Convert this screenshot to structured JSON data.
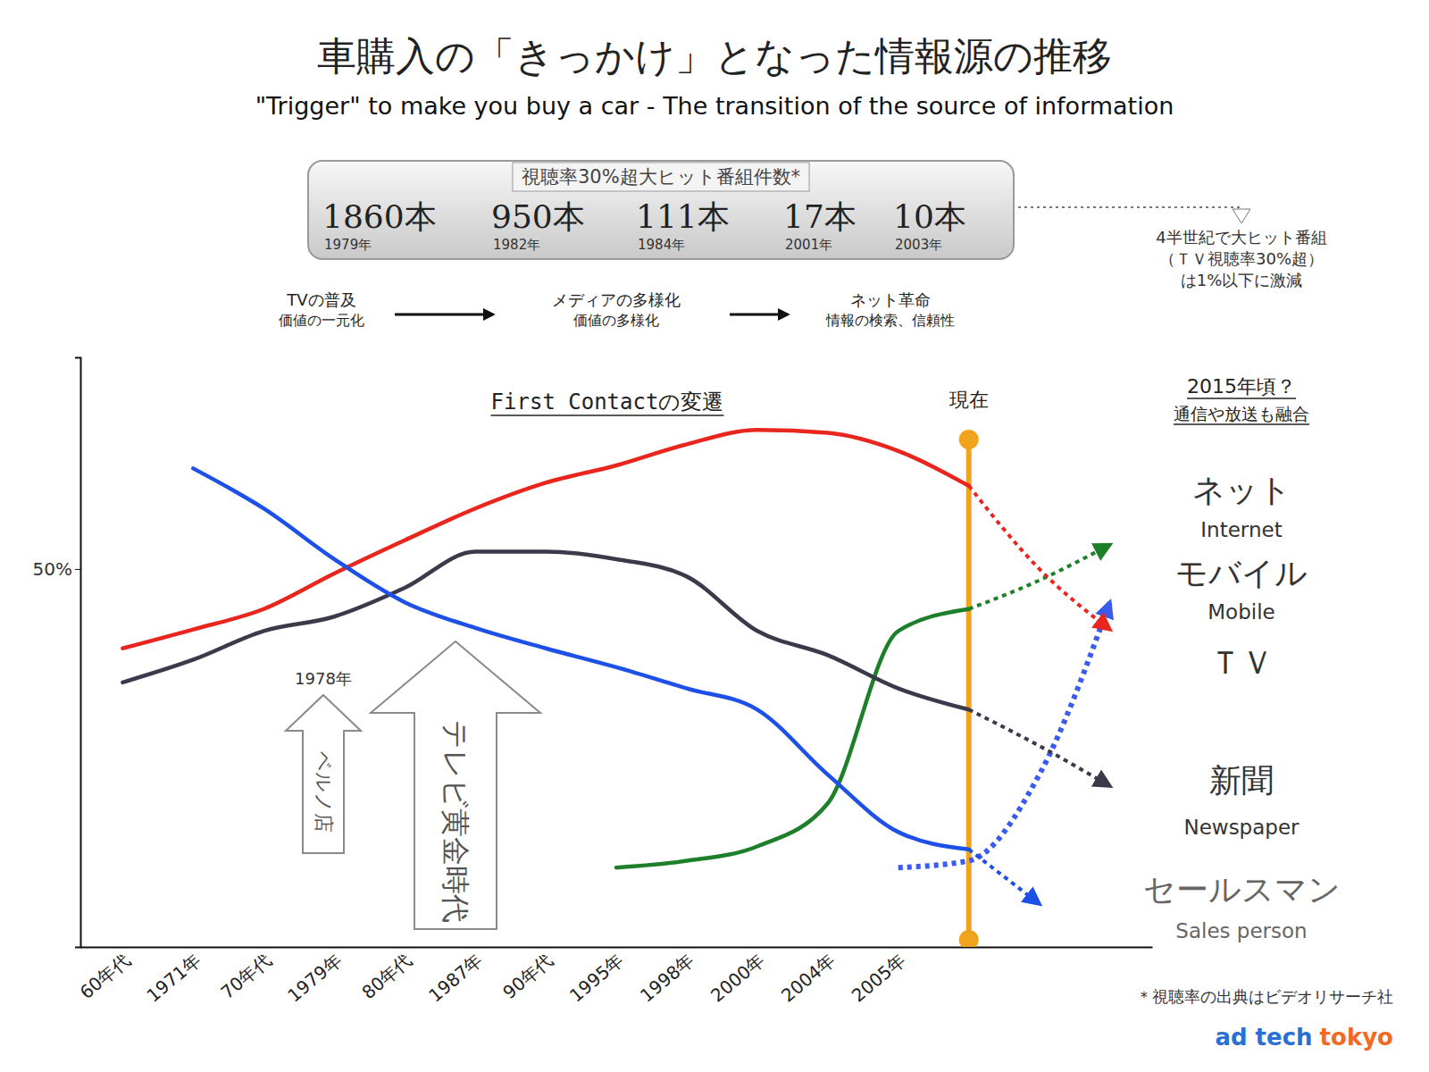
{
  "chart_data": {
    "type": "line",
    "title": "車購入の「きっかけ」となった情報源の推移",
    "subtitle": "\"Trigger\" to make you buy a car - The transition of the source of information",
    "plot_title": "First Contactの変遷",
    "categories": [
      "60年代",
      "1971年",
      "70年代",
      "1979年",
      "80年代",
      "1987年",
      "90年代",
      "1995年",
      "1998年",
      "2000年",
      "2004年",
      "2005年",
      null,
      null,
      null
    ],
    "ylim": [
      0,
      78
    ],
    "yticks": [
      {
        "value": 50,
        "label": "50%"
      }
    ],
    "grid": false,
    "series": [
      {
        "name": "ネット",
        "name_en": "Internet",
        "color": "#1e7f2a",
        "values": [
          null,
          null,
          null,
          null,
          null,
          null,
          null,
          10.5,
          11.4,
          13.3,
          19,
          41.8,
          44.7,
          null,
          null
        ],
        "forecast": [
          null,
          null,
          null,
          null,
          null,
          null,
          null,
          null,
          null,
          null,
          null,
          null,
          44.7,
          48.5,
          53.2
        ]
      },
      {
        "name": "モバイル",
        "name_en": "Mobile",
        "color": "#3b5bef",
        "values": [
          null,
          null,
          null,
          null,
          null,
          null,
          null,
          null,
          null,
          null,
          null,
          null,
          null,
          null,
          null
        ],
        "forecast": [
          null,
          null,
          null,
          null,
          null,
          null,
          null,
          null,
          null,
          null,
          null,
          10.5,
          11.4,
          22.8,
          45.6
        ]
      },
      {
        "name": "ＴＶ",
        "color": "#e8261e",
        "values": [
          39.5,
          42,
          44.7,
          49.4,
          53.8,
          58,
          61.4,
          63.7,
          66.5,
          68.4,
          68,
          65.6,
          61,
          null,
          null
        ],
        "forecast": [
          null,
          null,
          null,
          null,
          null,
          null,
          null,
          null,
          null,
          null,
          null,
          null,
          61,
          50,
          42
        ]
      },
      {
        "name": "新聞",
        "name_en": "Newspaper",
        "color": "#3a3a4a",
        "values": [
          35,
          38,
          41.8,
          43.7,
          47.5,
          52.3,
          52.3,
          51.3,
          49,
          41.8,
          38.6,
          34.2,
          31.4,
          null,
          null
        ],
        "forecast": [
          null,
          null,
          null,
          null,
          null,
          null,
          null,
          null,
          null,
          null,
          null,
          null,
          31.4,
          26.6,
          21.3
        ]
      },
      {
        "name": "セールスマン",
        "name_en": "Sales person",
        "color": "#1d50e6",
        "values": [
          null,
          63.3,
          58,
          51.3,
          45.6,
          42.2,
          39.5,
          37,
          34.2,
          31.4,
          22.8,
          15.2,
          12.9,
          null,
          null
        ],
        "forecast": [
          null,
          null,
          null,
          null,
          null,
          null,
          null,
          null,
          null,
          null,
          null,
          null,
          12.9,
          5.7,
          null
        ]
      }
    ],
    "hit_programs": {
      "title": "視聴率30%超大ヒット番組件数*",
      "items": [
        {
          "count": "1860本",
          "year": "1979年"
        },
        {
          "count": "950本",
          "year": "1982年"
        },
        {
          "count": "111本",
          "year": "1984年"
        },
        {
          "count": "17本",
          "year": "2001年"
        },
        {
          "count": "10本",
          "year": "2003年"
        }
      ]
    },
    "hit_note": [
      "4半世紀で大ヒット番組",
      "（ＴＶ視聴率30%超）",
      "は1%以下に激減"
    ],
    "eras": [
      {
        "lines": [
          "TVの普及",
          "価値の一元化"
        ]
      },
      {
        "lines": [
          "メディアの多様化",
          "価値の多様化"
        ]
      },
      {
        "lines": [
          "ネット革命",
          "情報の検索、信頼性"
        ]
      }
    ],
    "now": {
      "label": "現在",
      "x": 12
    },
    "outlook": {
      "title": "2015年頃？",
      "subtitle": "通信や放送も融合"
    },
    "events": [
      {
        "label": "1978年",
        "text": "ベルノ店"
      },
      {
        "text": "テレビ黄金時代"
      }
    ],
    "footnote": "＊視聴率の出典はビデオリサーチ社",
    "logo": {
      "brand": "ad tech",
      "city": "tokyo"
    }
  }
}
